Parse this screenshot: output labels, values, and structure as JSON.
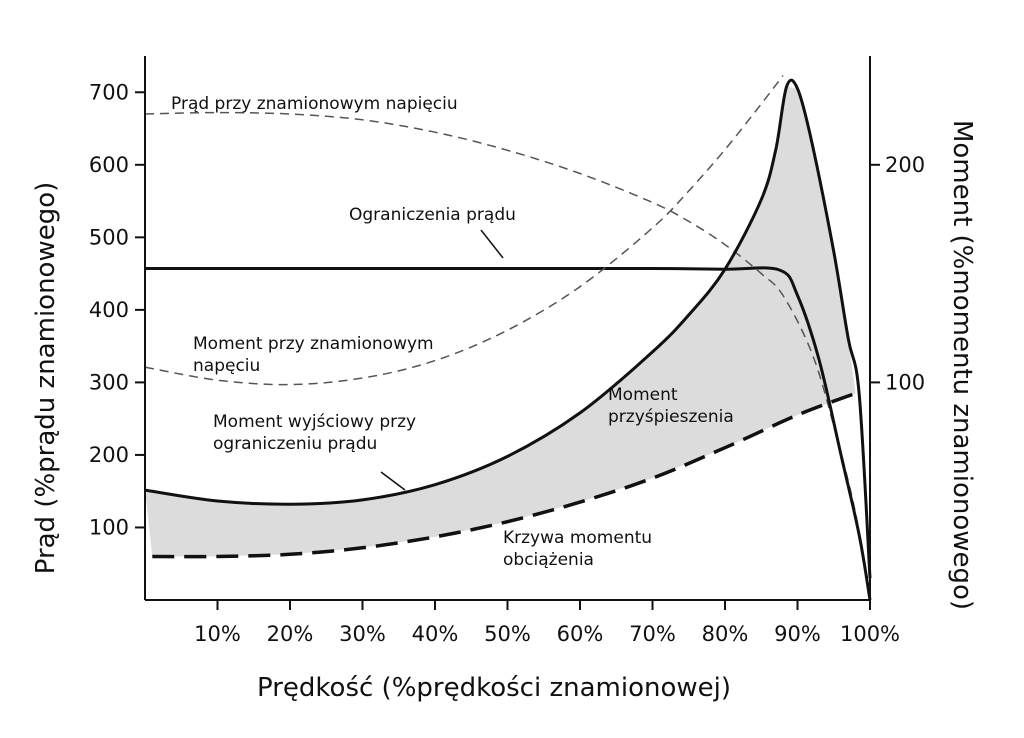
{
  "chart_data": {
    "type": "line",
    "xlabel": "Prędkość (%prędkości znamionowej)",
    "ylabel_left": "Prąd (%prądu znamionowego)",
    "ylabel_right": "Moment (%momentu znamionowego)",
    "xlim": [
      0,
      100
    ],
    "ylim_left": [
      0,
      750
    ],
    "ylim_right": [
      0,
      250
    ],
    "x_ticks": [
      {
        "value": 10,
        "label": "10%"
      },
      {
        "value": 20,
        "label": "20%"
      },
      {
        "value": 30,
        "label": "30%"
      },
      {
        "value": 40,
        "label": "40%"
      },
      {
        "value": 50,
        "label": "50%"
      },
      {
        "value": 60,
        "label": "60%"
      },
      {
        "value": 70,
        "label": "70%"
      },
      {
        "value": 80,
        "label": "80%"
      },
      {
        "value": 90,
        "label": "90%"
      },
      {
        "value": 100,
        "label": "100%"
      }
    ],
    "y_left_ticks": [
      {
        "value": 100,
        "label": "100"
      },
      {
        "value": 200,
        "label": "200"
      },
      {
        "value": 300,
        "label": "300"
      },
      {
        "value": 400,
        "label": "400"
      },
      {
        "value": 500,
        "label": "500"
      },
      {
        "value": 600,
        "label": "600"
      },
      {
        "value": 700,
        "label": "700"
      }
    ],
    "y_right_ticks": [
      {
        "value": 100,
        "label": "100"
      },
      {
        "value": 200,
        "label": "200"
      }
    ],
    "grid": false,
    "series": [
      {
        "name": "Prąd przy znamionowym napięciu",
        "axis": "left",
        "style": "dashed-thin",
        "points": [
          [
            0,
            670
          ],
          [
            10,
            672
          ],
          [
            20,
            670
          ],
          [
            30,
            662
          ],
          [
            40,
            645
          ],
          [
            50,
            620
          ],
          [
            60,
            588
          ],
          [
            70,
            548
          ],
          [
            75,
            522
          ],
          [
            80,
            490
          ],
          [
            85,
            450
          ],
          [
            88,
            420
          ],
          [
            92,
            340
          ],
          [
            95,
            240
          ],
          [
            98,
            120
          ],
          [
            100,
            0
          ]
        ]
      },
      {
        "name": "Ograniczenia prądu",
        "axis": "left",
        "style": "solid",
        "points": [
          [
            0,
            457
          ],
          [
            10,
            457
          ],
          [
            20,
            457
          ],
          [
            30,
            457
          ],
          [
            40,
            457
          ],
          [
            50,
            457
          ],
          [
            60,
            457
          ],
          [
            70,
            457
          ],
          [
            80,
            456
          ],
          [
            87.5,
            455
          ],
          [
            90,
            420
          ],
          [
            93,
            330
          ],
          [
            96,
            200
          ],
          [
            98.5,
            90
          ],
          [
            100,
            0
          ]
        ]
      },
      {
        "name": "Moment przy znamionowym napięciu",
        "axis": "right",
        "style": "dashed-thin",
        "points": [
          [
            0,
            107
          ],
          [
            10,
            101
          ],
          [
            20,
            99
          ],
          [
            30,
            102
          ],
          [
            40,
            110
          ],
          [
            50,
            124
          ],
          [
            60,
            144
          ],
          [
            70,
            171
          ],
          [
            75,
            188
          ],
          [
            80,
            207
          ],
          [
            85,
            228
          ],
          [
            88,
            241
          ]
        ]
      },
      {
        "name": "Moment wyjściowy przy ograniczeniu prądu",
        "axis": "right",
        "style": "solid",
        "points": [
          [
            0,
            50.5
          ],
          [
            10,
            45.5
          ],
          [
            20,
            44
          ],
          [
            30,
            46
          ],
          [
            40,
            53
          ],
          [
            50,
            66
          ],
          [
            60,
            86
          ],
          [
            70,
            114
          ],
          [
            75,
            131
          ],
          [
            80,
            152
          ],
          [
            85,
            184
          ],
          [
            87,
            207
          ],
          [
            88.5,
            236
          ],
          [
            90,
            235
          ],
          [
            92,
            210
          ],
          [
            95,
            160
          ],
          [
            97,
            120
          ],
          [
            98.5,
            95
          ],
          [
            100,
            10
          ]
        ]
      },
      {
        "name": "Krzywa momentu obciążenia",
        "axis": "right",
        "style": "dashed-thick",
        "points": [
          [
            1,
            20
          ],
          [
            10,
            20
          ],
          [
            20,
            21
          ],
          [
            30,
            24
          ],
          [
            40,
            29
          ],
          [
            50,
            36
          ],
          [
            60,
            45
          ],
          [
            70,
            56
          ],
          [
            80,
            70
          ],
          [
            90,
            85
          ],
          [
            98,
            95
          ]
        ]
      }
    ],
    "shaded_region": {
      "name": "Moment przyśpieszenia",
      "between": [
        "Moment wyjściowy przy ograniczeniu prądu",
        "Krzywa momentu obciążenia"
      ]
    },
    "annotations": [
      {
        "id": "prad-nap",
        "lines": [
          "Prąd przy znamionowym napięciu"
        ]
      },
      {
        "id": "ogr",
        "lines": [
          "Ograniczenia prądu"
        ]
      },
      {
        "id": "mom-nap",
        "lines": [
          "Moment przy znamionowym",
          "napęciu"
        ]
      },
      {
        "id": "mom-wyj",
        "lines": [
          "Moment wyjściowy przy",
          "ograniczeniu prądu"
        ]
      },
      {
        "id": "mom-przysp",
        "lines": [
          "Moment",
          "przyśpieszenia"
        ]
      },
      {
        "id": "krzywa",
        "lines": [
          "Krzywa momentu",
          "obciążenia"
        ]
      }
    ]
  }
}
